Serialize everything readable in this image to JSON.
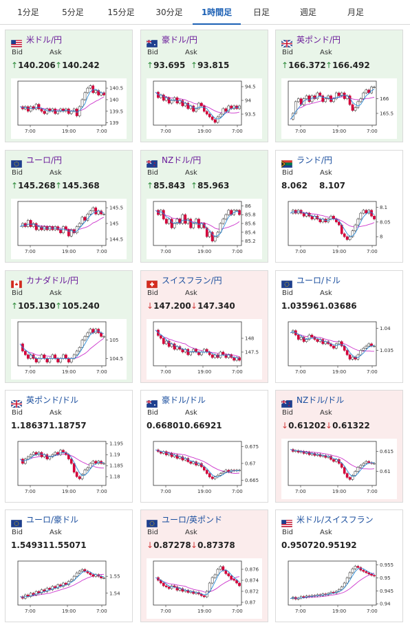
{
  "tabs": [
    {
      "label": "1分足",
      "active": false
    },
    {
      "label": "5分足",
      "active": false
    },
    {
      "label": "15分足",
      "active": false
    },
    {
      "label": "30分足",
      "active": false
    },
    {
      "label": "1時間足",
      "active": true
    },
    {
      "label": "日足",
      "active": false
    },
    {
      "label": "週足",
      "active": false
    },
    {
      "label": "月足",
      "active": false
    }
  ],
  "labels": {
    "bid": "Bid",
    "ask": "Ask"
  },
  "time_ticks": [
    "7:00",
    "19:00",
    "7:00"
  ],
  "colors": {
    "up_arrow": "#2e8b3a",
    "down_arrow": "#d23a3a",
    "candle_up": "#ffffff",
    "candle_down": "#d4003a",
    "ma_fast": "#2a8bd8",
    "ma_slow": "#cc33cc",
    "up_card_bg": "#e9f5e9",
    "down_card_bg": "#fbecec"
  },
  "cards": [
    {
      "pair": "米ドル/円",
      "flag": "flag-us-jp",
      "state": "up",
      "bid_arrow": "up",
      "ask_arrow": "up",
      "bid": "140.206",
      "ask": "140.242",
      "yticks": [
        "140.5",
        "140",
        "139.5",
        "139"
      ],
      "ylim": [
        138.9,
        140.8
      ],
      "series": [
        139.7,
        139.6,
        139.7,
        139.5,
        139.7,
        139.6,
        139.8,
        139.6,
        139.5,
        139.4,
        139.6,
        139.5,
        139.6,
        139.4,
        139.5,
        139.6,
        139.5,
        139.6,
        139.4,
        139.5,
        139.6,
        139.3,
        139.7,
        140.0,
        140.3,
        140.5,
        140.6,
        140.3,
        140.4,
        140.2,
        140.3,
        140.2
      ]
    },
    {
      "pair": "豪ドル/円",
      "flag": "flag-au-jp",
      "state": "up",
      "bid_arrow": "up",
      "ask_arrow": "up",
      "bid": "93.695",
      "ask": "93.815",
      "yticks": [
        "94.5",
        "94",
        "93.5"
      ],
      "ylim": [
        93.1,
        94.7
      ],
      "series": [
        94.3,
        94.1,
        94.2,
        94.0,
        94.1,
        93.9,
        94.0,
        94.1,
        93.9,
        94.0,
        93.8,
        93.9,
        93.7,
        93.8,
        93.6,
        93.7,
        93.9,
        93.8,
        93.6,
        93.5,
        93.4,
        93.3,
        93.2,
        93.4,
        93.5,
        93.7,
        93.6,
        93.8,
        93.7,
        93.8,
        93.7,
        93.8
      ]
    },
    {
      "pair": "英ポンド/円",
      "flag": "flag-gb-jp",
      "state": "up",
      "bid_arrow": "up",
      "ask_arrow": "up",
      "bid": "166.372",
      "ask": "166.492",
      "yticks": [
        "166",
        "165.5"
      ],
      "ylim": [
        165.1,
        166.6
      ],
      "series": [
        165.3,
        165.5,
        165.9,
        166.0,
        165.8,
        166.0,
        166.1,
        165.9,
        166.1,
        166.0,
        166.2,
        166.1,
        165.9,
        166.0,
        166.1,
        165.9,
        166.0,
        166.2,
        166.1,
        166.2,
        166.0,
        166.1,
        165.8,
        165.6,
        165.7,
        165.9,
        166.0,
        166.2,
        166.3,
        166.2,
        166.4,
        166.4
      ]
    },
    {
      "pair": "ユーロ/円",
      "flag": "flag-eu-jp",
      "state": "up",
      "bid_arrow": "up",
      "ask_arrow": "up",
      "bid": "145.268",
      "ask": "145.368",
      "yticks": [
        "145.5",
        "145",
        "144.5"
      ],
      "ylim": [
        144.3,
        145.7
      ],
      "series": [
        144.9,
        145.0,
        144.9,
        145.1,
        144.9,
        145.0,
        144.8,
        144.9,
        144.8,
        144.9,
        144.8,
        144.9,
        144.8,
        144.9,
        144.8,
        144.7,
        144.9,
        144.8,
        144.6,
        144.8,
        144.7,
        144.9,
        145.0,
        145.2,
        145.1,
        145.3,
        145.4,
        145.5,
        145.3,
        145.4,
        145.3,
        145.3
      ]
    },
    {
      "pair": "NZドル/円",
      "flag": "flag-nz-jp",
      "state": "up",
      "bid_arrow": "up",
      "ask_arrow": "up",
      "bid": "85.843",
      "ask": "85.963",
      "yticks": [
        "86",
        "85.8",
        "85.6",
        "85.4",
        "85.2"
      ],
      "ylim": [
        85.1,
        86.1
      ],
      "series": [
        85.9,
        85.8,
        85.9,
        85.7,
        85.6,
        85.7,
        85.5,
        85.6,
        85.7,
        85.6,
        85.8,
        85.6,
        85.7,
        85.5,
        85.6,
        85.7,
        85.5,
        85.6,
        85.5,
        85.3,
        85.4,
        85.2,
        85.3,
        85.4,
        85.6,
        85.7,
        85.8,
        85.9,
        85.8,
        85.9,
        85.9,
        85.8
      ]
    },
    {
      "pair": "ランド/円",
      "flag": "flag-za-jp",
      "state": "neutral",
      "bid_arrow": "",
      "ask_arrow": "",
      "bid": "8.062",
      "ask": "8.107",
      "yticks": [
        "8.1",
        "8.05",
        "8"
      ],
      "ylim": [
        7.97,
        8.12
      ],
      "series": [
        8.08,
        8.09,
        8.08,
        8.09,
        8.08,
        8.07,
        8.08,
        8.07,
        8.06,
        8.07,
        8.06,
        8.05,
        8.06,
        8.05,
        8.06,
        8.07,
        8.06,
        8.05,
        8.04,
        8.01,
        8.0,
        7.99,
        8.0,
        8.02,
        8.04,
        8.06,
        8.08,
        8.09,
        8.08,
        8.09,
        8.07,
        8.06
      ]
    },
    {
      "pair": "カナダドル/円",
      "flag": "flag-ca-jp",
      "state": "up",
      "bid_arrow": "up",
      "ask_arrow": "up",
      "bid": "105.130",
      "ask": "105.240",
      "yticks": [
        "105",
        "104.5"
      ],
      "ylim": [
        104.3,
        105.5
      ],
      "series": [
        104.9,
        104.7,
        104.6,
        104.5,
        104.6,
        104.5,
        104.4,
        104.5,
        104.6,
        104.5,
        104.4,
        104.5,
        104.6,
        104.5,
        104.4,
        104.5,
        104.6,
        104.5,
        104.4,
        104.5,
        104.6,
        104.7,
        104.8,
        105.0,
        105.1,
        105.2,
        105.3,
        105.2,
        105.3,
        105.2,
        105.1,
        105.1
      ]
    },
    {
      "pair": "スイスフラン/円",
      "flag": "flag-ch-jp",
      "state": "down",
      "bid_arrow": "down",
      "ask_arrow": "down",
      "bid": "147.200",
      "ask": "147.340",
      "yticks": [
        "148",
        "147.5"
      ],
      "ylim": [
        147.0,
        148.6
      ],
      "series": [
        148.3,
        148.1,
        148.0,
        147.8,
        147.9,
        147.7,
        147.8,
        147.6,
        147.7,
        147.6,
        147.5,
        147.6,
        147.4,
        147.5,
        147.6,
        147.5,
        147.4,
        147.5,
        147.6,
        147.5,
        147.4,
        147.3,
        147.4,
        147.3,
        147.5,
        147.4,
        147.3,
        147.4,
        147.3,
        147.2,
        147.3,
        147.2
      ]
    },
    {
      "pair": "ユーロ/ドル",
      "flag": "flag-eu-us",
      "state": "neutral",
      "bid_arrow": "",
      "ask_arrow": "",
      "bid": "1.03596",
      "ask": "1.03686",
      "yticks": [
        "1.04",
        "1.035"
      ],
      "ylim": [
        1.0315,
        1.0415
      ],
      "series": [
        1.039,
        1.0395,
        1.0385,
        1.0375,
        1.038,
        1.037,
        1.0375,
        1.0385,
        1.038,
        1.0375,
        1.037,
        1.0375,
        1.0365,
        1.037,
        1.0365,
        1.036,
        1.0355,
        1.0365,
        1.037,
        1.036,
        1.035,
        1.034,
        1.033,
        1.0335,
        1.033,
        1.034,
        1.035,
        1.0355,
        1.036,
        1.0365,
        1.036,
        1.036
      ]
    },
    {
      "pair": "英ポンド/ドル",
      "flag": "flag-gb-us",
      "state": "neutral",
      "bid_arrow": "",
      "ask_arrow": "",
      "bid": "1.18637",
      "ask": "1.18757",
      "yticks": [
        "1.195",
        "1.19",
        "1.185",
        "1.18"
      ],
      "ylim": [
        1.176,
        1.196
      ],
      "series": [
        1.188,
        1.186,
        1.188,
        1.189,
        1.19,
        1.191,
        1.19,
        1.191,
        1.189,
        1.19,
        1.188,
        1.189,
        1.19,
        1.191,
        1.19,
        1.192,
        1.191,
        1.19,
        1.188,
        1.186,
        1.182,
        1.18,
        1.179,
        1.181,
        1.183,
        1.184,
        1.186,
        1.187,
        1.186,
        1.187,
        1.186,
        1.186
      ]
    },
    {
      "pair": "豪ドル/ドル",
      "flag": "flag-au-us",
      "state": "neutral",
      "bid_arrow": "",
      "ask_arrow": "",
      "bid": "0.66801",
      "ask": "0.66921",
      "yticks": [
        "0.675",
        "0.67",
        "0.665"
      ],
      "ylim": [
        0.6635,
        0.6765
      ],
      "series": [
        0.674,
        0.6735,
        0.673,
        0.6735,
        0.6725,
        0.673,
        0.672,
        0.6725,
        0.6715,
        0.672,
        0.671,
        0.6715,
        0.6705,
        0.67,
        0.6705,
        0.6695,
        0.67,
        0.669,
        0.668,
        0.667,
        0.666,
        0.6655,
        0.666,
        0.6665,
        0.667,
        0.6675,
        0.668,
        0.6675,
        0.668,
        0.6678,
        0.668,
        0.668
      ]
    },
    {
      "pair": "NZドル/ドル",
      "flag": "flag-nz-us",
      "state": "down",
      "bid_arrow": "down",
      "ask_arrow": "down",
      "bid": "0.61202",
      "ask": "0.61322",
      "yticks": [
        "0.615",
        "0.61"
      ],
      "ylim": [
        0.6065,
        0.6175
      ],
      "series": [
        0.6155,
        0.615,
        0.6152,
        0.6148,
        0.615,
        0.6145,
        0.6148,
        0.6142,
        0.6145,
        0.614,
        0.6143,
        0.6138,
        0.614,
        0.6135,
        0.6138,
        0.613,
        0.6125,
        0.613,
        0.612,
        0.611,
        0.6095,
        0.6085,
        0.608,
        0.609,
        0.61,
        0.611,
        0.6115,
        0.612,
        0.6125,
        0.6122,
        0.612,
        0.612
      ]
    },
    {
      "pair": "ユーロ/豪ドル",
      "flag": "flag-eu-au",
      "state": "neutral",
      "bid_arrow": "",
      "ask_arrow": "",
      "bid": "1.54931",
      "ask": "1.55071",
      "yticks": [
        "1.55",
        "1.54"
      ],
      "ylim": [
        1.533,
        1.559
      ],
      "series": [
        1.538,
        1.537,
        1.539,
        1.538,
        1.54,
        1.539,
        1.541,
        1.54,
        1.542,
        1.541,
        1.543,
        1.542,
        1.544,
        1.543,
        1.545,
        1.544,
        1.546,
        1.545,
        1.547,
        1.548,
        1.55,
        1.552,
        1.553,
        1.554,
        1.553,
        1.552,
        1.551,
        1.55,
        1.551,
        1.55,
        1.549,
        1.549
      ]
    },
    {
      "pair": "ユーロ/英ポンド",
      "flag": "flag-eu-gb",
      "state": "down",
      "bid_arrow": "down",
      "ask_arrow": "down",
      "bid": "0.87278",
      "ask": "0.87378",
      "yticks": [
        "0.876",
        "0.874",
        "0.872",
        "0.87"
      ],
      "ylim": [
        0.8695,
        0.8775
      ],
      "series": [
        0.8745,
        0.874,
        0.8735,
        0.873,
        0.8728,
        0.8725,
        0.873,
        0.8728,
        0.8722,
        0.8725,
        0.872,
        0.8722,
        0.8718,
        0.872,
        0.8716,
        0.8718,
        0.8715,
        0.8712,
        0.871,
        0.872,
        0.8735,
        0.8745,
        0.875,
        0.876,
        0.8765,
        0.8758,
        0.8752,
        0.8748,
        0.8742,
        0.874,
        0.8735,
        0.873
      ]
    },
    {
      "pair": "米ドル/スイスフラン",
      "flag": "flag-us-ch",
      "state": "neutral",
      "bid_arrow": "",
      "ask_arrow": "",
      "bid": "0.95072",
      "ask": "0.95192",
      "yticks": [
        "0.955",
        "0.95",
        "0.945",
        "0.94"
      ],
      "ylim": [
        0.9395,
        0.9565
      ],
      "series": [
        0.942,
        0.9425,
        0.9418,
        0.9422,
        0.9428,
        0.9425,
        0.943,
        0.9428,
        0.9432,
        0.943,
        0.9435,
        0.9432,
        0.9438,
        0.9435,
        0.944,
        0.9445,
        0.9442,
        0.9448,
        0.9455,
        0.9465,
        0.948,
        0.95,
        0.952,
        0.9535,
        0.9545,
        0.954,
        0.953,
        0.9525,
        0.952,
        0.9515,
        0.951,
        0.9507
      ]
    }
  ]
}
